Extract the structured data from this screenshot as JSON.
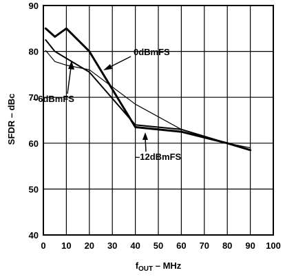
{
  "chart_data": {
    "type": "line",
    "xlabel_main": "f",
    "xlabel_sub": "OUT",
    "xlabel_rest": " – MHz",
    "ylabel": "SFDR – dBc",
    "xlim": [
      0,
      100
    ],
    "ylim": [
      40,
      90
    ],
    "xticks": [
      "0",
      "10",
      "20",
      "30",
      "40",
      "50",
      "60",
      "70",
      "80",
      "90",
      "100"
    ],
    "yticks": [
      "40",
      "50",
      "60",
      "70",
      "80",
      "90"
    ],
    "grid": true,
    "series": [
      {
        "name": "0dBmFS",
        "stroke": 3,
        "x": [
          1,
          5,
          10,
          20,
          40,
          60,
          80,
          90
        ],
        "y": [
          85,
          83.2,
          85,
          80,
          63.5,
          62.5,
          60,
          58.5
        ]
      },
      {
        "name": "–6dBmFS",
        "stroke": 2,
        "x": [
          1,
          5,
          10,
          20,
          40,
          60,
          80,
          90
        ],
        "y": [
          82.5,
          80,
          78.5,
          75.5,
          64,
          63,
          60,
          58.5
        ]
      },
      {
        "name": "–12dBmFS",
        "stroke": 1.2,
        "x": [
          1,
          5,
          10,
          20,
          40,
          60,
          80,
          90
        ],
        "y": [
          80.2,
          77.8,
          77,
          76,
          68.5,
          63,
          60,
          59
        ]
      }
    ],
    "annotations": [
      {
        "text": "0dBmFS"
      },
      {
        "text": "–6dBmFS"
      },
      {
        "text": "–12dBmFS"
      }
    ]
  }
}
